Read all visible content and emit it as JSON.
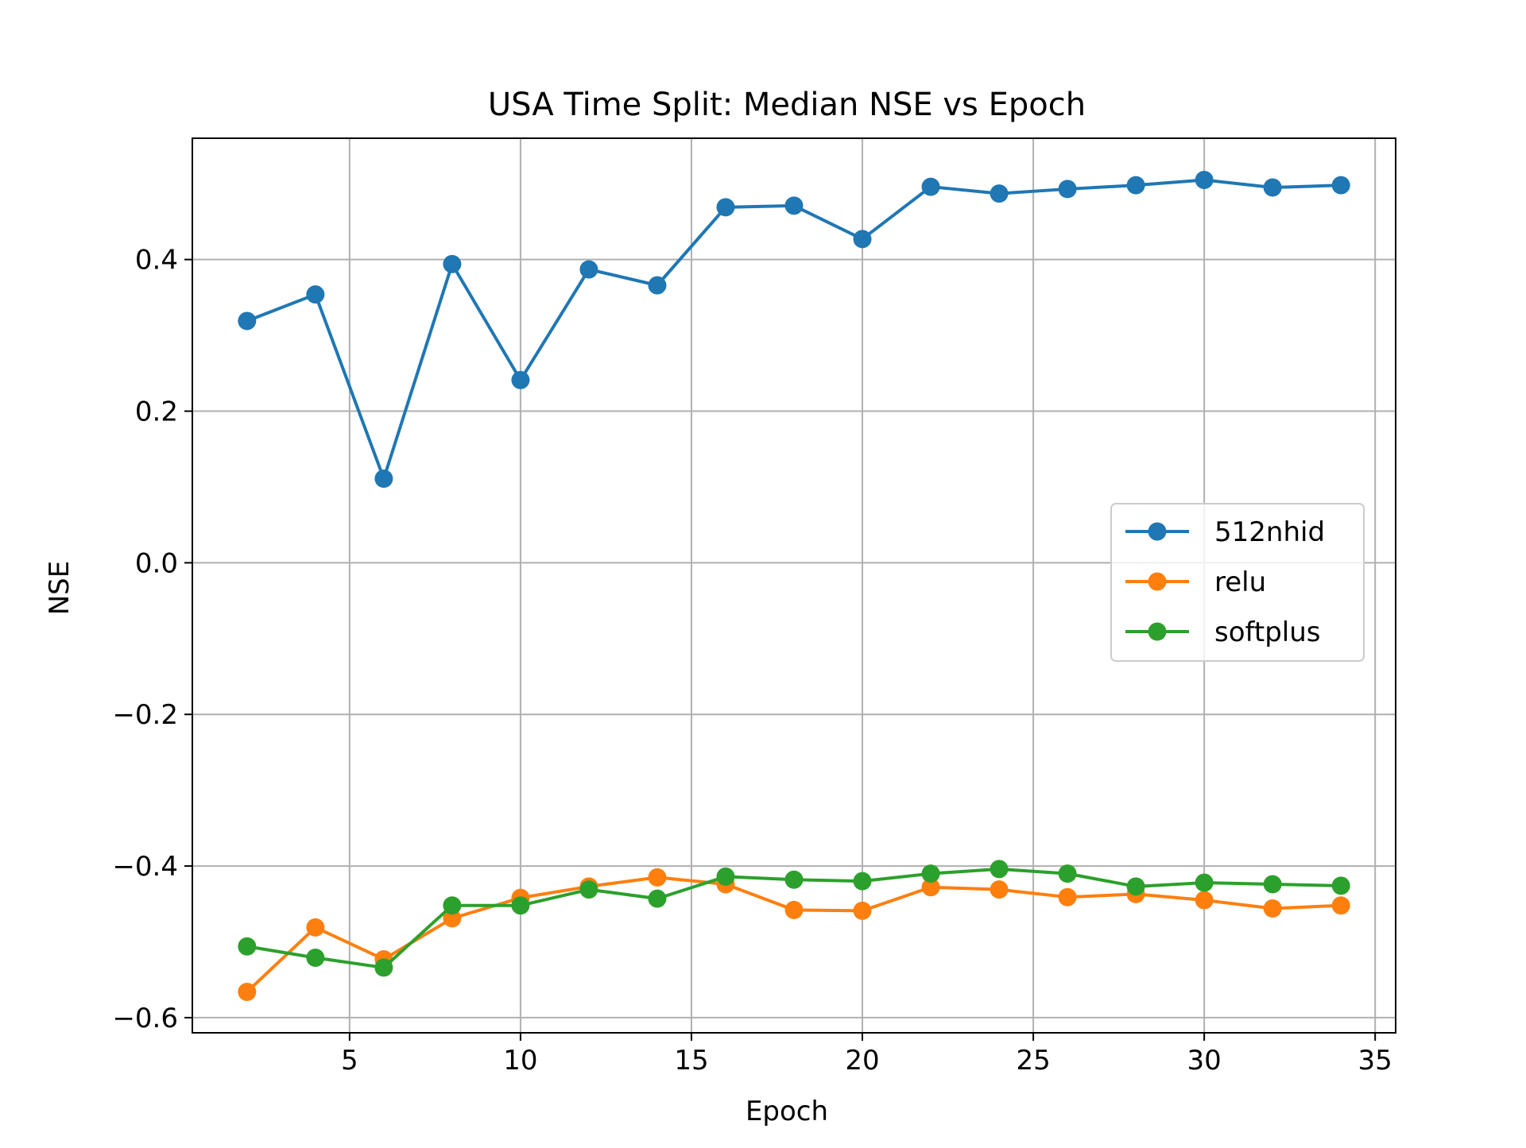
{
  "chart_data": {
    "type": "line",
    "title": "USA Time Split: Median NSE vs Epoch",
    "xlabel": "Epoch",
    "ylabel": "NSE",
    "xlim": [
      0.4,
      35.6
    ],
    "ylim": [
      -0.62,
      0.56
    ],
    "xticks": [
      5,
      10,
      15,
      20,
      25,
      30,
      35
    ],
    "yticks": [
      -0.6,
      -0.4,
      -0.2,
      0.0,
      0.2,
      0.4
    ],
    "ytick_labels": [
      "−0.6",
      "−0.4",
      "−0.2",
      "0.0",
      "0.2",
      "0.4"
    ],
    "grid": true,
    "legend_position": "center-right",
    "x": [
      2,
      4,
      6,
      8,
      10,
      12,
      14,
      16,
      18,
      20,
      22,
      24,
      26,
      28,
      30,
      32,
      34
    ],
    "series": [
      {
        "name": "512nhid",
        "color": "#1f77b4",
        "values": [
          0.319,
          0.354,
          0.111,
          0.394,
          0.241,
          0.387,
          0.366,
          0.469,
          0.471,
          0.427,
          0.496,
          0.487,
          0.493,
          0.498,
          0.505,
          0.495,
          0.498
        ]
      },
      {
        "name": "relu",
        "color": "#ff7f0e",
        "values": [
          -0.566,
          -0.481,
          -0.523,
          -0.469,
          -0.442,
          -0.427,
          -0.415,
          -0.424,
          -0.458,
          -0.459,
          -0.428,
          -0.431,
          -0.441,
          -0.437,
          -0.445,
          -0.456,
          -0.452
        ]
      },
      {
        "name": "softplus",
        "color": "#2ca02c",
        "values": [
          -0.506,
          -0.521,
          -0.534,
          -0.452,
          -0.452,
          -0.431,
          -0.443,
          -0.414,
          -0.418,
          -0.42,
          -0.41,
          -0.404,
          -0.41,
          -0.427,
          -0.422,
          -0.424,
          -0.426
        ]
      }
    ]
  }
}
